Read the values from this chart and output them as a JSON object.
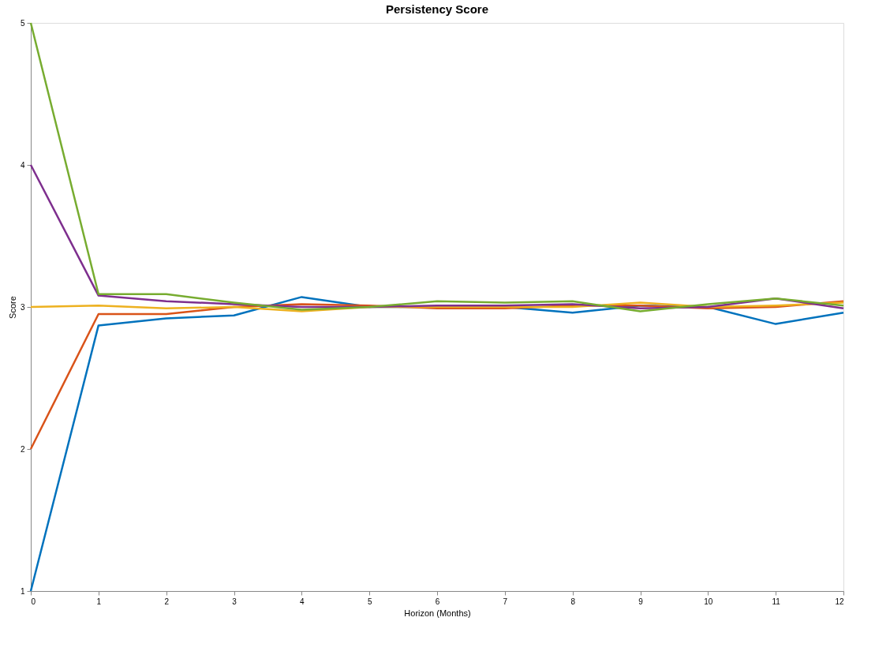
{
  "chart_data": {
    "type": "line",
    "title": "Persistency Score",
    "xlabel": "Horizon (Months)",
    "ylabel": "Score",
    "x": [
      0,
      1,
      2,
      3,
      4,
      5,
      6,
      7,
      8,
      9,
      10,
      11,
      12
    ],
    "series": [
      {
        "color": "#0072bd",
        "values": [
          1,
          2.87,
          2.92,
          2.94,
          3.07,
          3.0,
          3.0,
          3.0,
          2.96,
          3.01,
          3.0,
          2.88,
          2.96
        ]
      },
      {
        "color": "#d95319",
        "values": [
          2,
          2.95,
          2.95,
          3.0,
          3.02,
          3.01,
          2.99,
          2.99,
          3.01,
          3.01,
          2.99,
          3.0,
          3.04
        ]
      },
      {
        "color": "#edb120",
        "values": [
          3,
          3.01,
          2.99,
          3.0,
          2.97,
          3.0,
          3.0,
          3.0,
          3.0,
          3.03,
          3.0,
          3.01,
          3.03
        ]
      },
      {
        "color": "#7e2f8e",
        "values": [
          4,
          3.08,
          3.04,
          3.02,
          3.0,
          3.0,
          3.01,
          3.01,
          3.02,
          2.99,
          3.0,
          3.06,
          2.99
        ]
      },
      {
        "color": "#77ac30",
        "values": [
          5,
          3.09,
          3.09,
          3.03,
          2.98,
          3.0,
          3.04,
          3.03,
          3.04,
          2.97,
          3.02,
          3.06,
          3.01
        ]
      }
    ],
    "xlim": [
      0,
      12
    ],
    "xticks": [
      0,
      1,
      2,
      3,
      4,
      5,
      6,
      7,
      8,
      9,
      10,
      11,
      12
    ],
    "ylim": [
      1,
      5
    ],
    "yticks": [
      1,
      2,
      3,
      4,
      5
    ],
    "grid": false,
    "marker": "none",
    "line_style": "solid"
  }
}
